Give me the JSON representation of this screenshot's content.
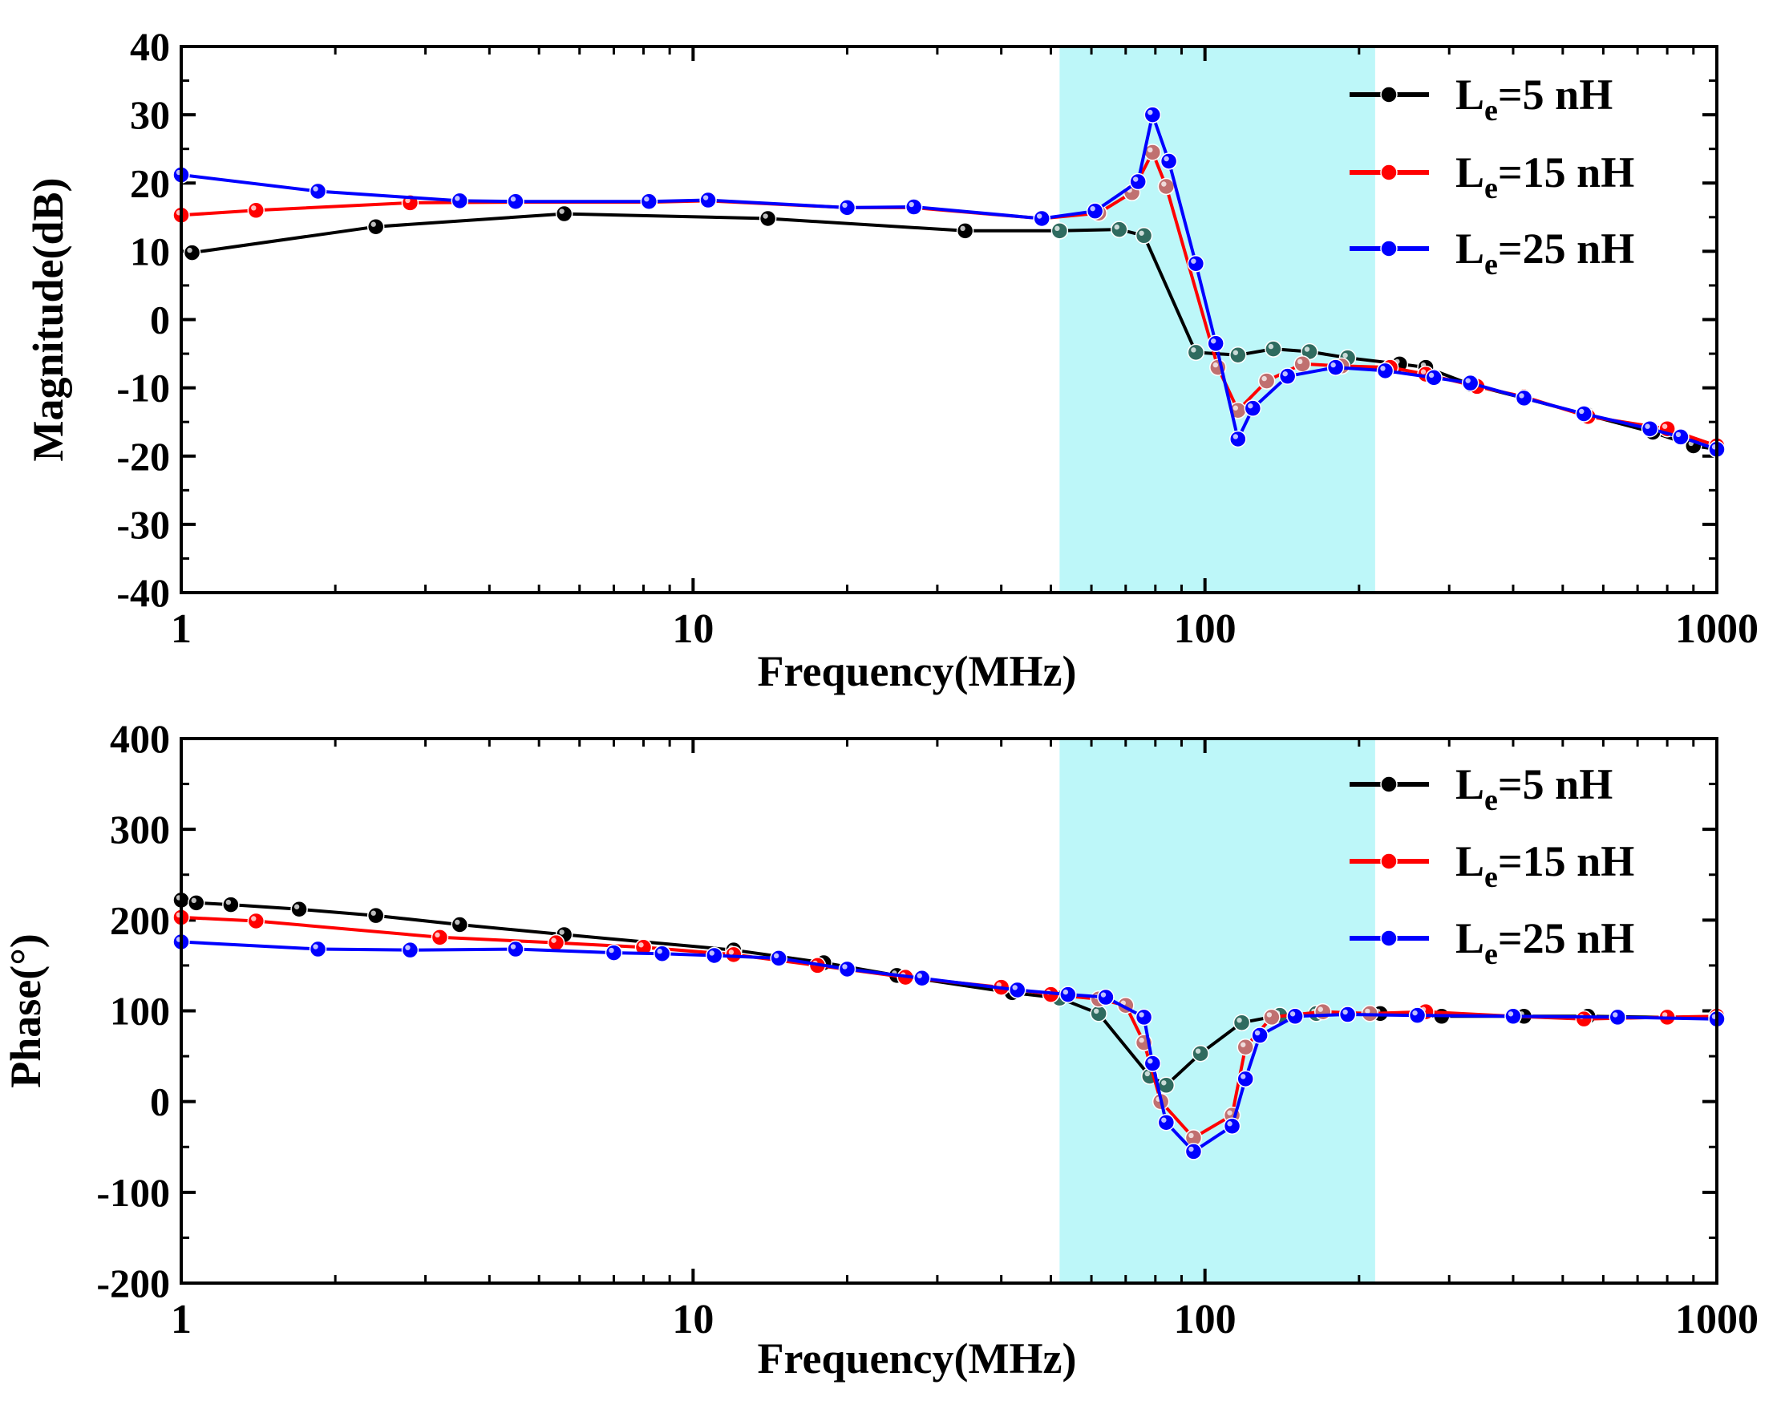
{
  "chart_data": [
    {
      "id": "magnitude",
      "type": "line",
      "xscale": "log",
      "xlim": [
        1,
        1000
      ],
      "ylim": [
        -40,
        40
      ],
      "xlabel": "Frequency(MHz)",
      "ylabel": "Magnitude(dB)",
      "xticks": [
        1,
        10,
        100,
        1000
      ],
      "xtick_labels": [
        "1",
        "10",
        "100",
        "1000"
      ],
      "yticks": [
        -40,
        -30,
        -20,
        -10,
        0,
        10,
        20,
        30,
        40
      ],
      "ytick_labels": [
        "-40",
        "-30",
        "-20",
        "-10",
        "0",
        "10",
        "20",
        "30",
        "40"
      ],
      "highlight_band": {
        "x_from": 52,
        "x_to": 215,
        "color": "#bdf7f9"
      },
      "legend_position": "top-right",
      "series": [
        {
          "name": "Le=5 nH",
          "label_main": "L",
          "label_sub": "e",
          "label_rest": "=5 nH",
          "color": "#000000",
          "band_color": "#2f6b5f",
          "x": [
            1.05,
            2.4,
            5.6,
            14,
            34,
            52,
            68,
            76,
            96,
            116,
            136,
            160,
            190,
            240,
            270,
            330,
            420,
            560,
            750,
            900,
            1000
          ],
          "y": [
            9.8,
            13.6,
            15.5,
            14.8,
            13.0,
            13.0,
            13.2,
            12.3,
            -4.8,
            -5.2,
            -4.3,
            -4.7,
            -5.6,
            -6.5,
            -7.0,
            -9.5,
            -11.5,
            -14.0,
            -16.5,
            -18.5,
            -19.0
          ]
        },
        {
          "name": "Le=15 nH",
          "label_main": "L",
          "label_sub": "e",
          "label_rest": "=15 nH",
          "color": "#ff0000",
          "band_color": "#c07070",
          "x": [
            1.0,
            1.4,
            2.8,
            4.5,
            8.2,
            10.7,
            20,
            27,
            48,
            62,
            72,
            79,
            84,
            106,
            116,
            132,
            155,
            185,
            230,
            270,
            340,
            420,
            560,
            800,
            1000
          ],
          "y": [
            15.3,
            16.0,
            17.1,
            17.2,
            17.2,
            17.4,
            16.4,
            16.4,
            14.8,
            15.6,
            18.6,
            24.5,
            19.5,
            -7.0,
            -13.3,
            -9.0,
            -6.5,
            -6.8,
            -7.0,
            -8.0,
            -9.8,
            -11.3,
            -14.2,
            -16.0,
            -18.5
          ]
        },
        {
          "name": "Le=25 nH",
          "label_main": "L",
          "label_sub": "e",
          "label_rest": "=25 nH",
          "color": "#0000ff",
          "band_color": "#0000ff",
          "x": [
            1.0,
            1.85,
            3.5,
            4.5,
            8.2,
            10.7,
            20,
            27,
            48,
            61,
            74,
            79,
            85,
            96,
            105,
            116,
            124,
            145,
            180,
            225,
            280,
            330,
            420,
            550,
            740,
            850,
            1000
          ],
          "y": [
            21.2,
            18.8,
            17.4,
            17.3,
            17.3,
            17.5,
            16.4,
            16.5,
            14.8,
            15.9,
            20.2,
            30.0,
            23.2,
            8.2,
            -3.5,
            -17.5,
            -13.0,
            -8.3,
            -7.0,
            -7.5,
            -8.5,
            -9.3,
            -11.5,
            -13.8,
            -16.0,
            -17.2,
            -19.0
          ]
        }
      ]
    },
    {
      "id": "phase",
      "type": "line",
      "xscale": "log",
      "xlim": [
        1,
        1000
      ],
      "ylim": [
        -200,
        400
      ],
      "xlabel": "Frequency(MHz)",
      "ylabel": "Phase(°)",
      "xticks": [
        1,
        10,
        100,
        1000
      ],
      "xtick_labels": [
        "1",
        "10",
        "100",
        "1000"
      ],
      "yticks": [
        -200,
        -100,
        0,
        100,
        200,
        300,
        400
      ],
      "ytick_labels": [
        "-200",
        "-100",
        "0",
        "100",
        "200",
        "300",
        "400"
      ],
      "highlight_band": {
        "x_from": 52,
        "x_to": 215,
        "color": "#bdf7f9"
      },
      "legend_position": "top-right",
      "series": [
        {
          "name": "Le=5 nH",
          "label_main": "L",
          "label_sub": "e",
          "label_rest": "=5 nH",
          "color": "#000000",
          "band_color": "#2f6b5f",
          "x": [
            1.0,
            1.07,
            1.25,
            1.7,
            2.4,
            3.5,
            5.6,
            12,
            18,
            25,
            42,
            52,
            62,
            78,
            84,
            98,
            118,
            140,
            165,
            190,
            220,
            290,
            420,
            560,
            1000
          ],
          "y": [
            222,
            219,
            217,
            212,
            205,
            195,
            184,
            167,
            153,
            139,
            120,
            114,
            97,
            28,
            18,
            53,
            87,
            95,
            97,
            96,
            97,
            94,
            94,
            94,
            92
          ]
        },
        {
          "name": "Le=15 nH",
          "label_main": "L",
          "label_sub": "e",
          "label_rest": "=15 nH",
          "color": "#ff0000",
          "band_color": "#c07070",
          "x": [
            1.0,
            1.4,
            3.2,
            5.4,
            8.0,
            12,
            17.5,
            26,
            40,
            50,
            62,
            70,
            76,
            82,
            95,
            113,
            120,
            135,
            170,
            210,
            270,
            400,
            550,
            800,
            1000
          ],
          "y": [
            203,
            199,
            181,
            175,
            170,
            162,
            150,
            137,
            126,
            118,
            113,
            106,
            65,
            0,
            -40,
            -15,
            60,
            93,
            99,
            97,
            99,
            94,
            91,
            93,
            94
          ]
        },
        {
          "name": "Le=25 nH",
          "label_main": "L",
          "label_sub": "e",
          "label_rest": "=25 nH",
          "color": "#0000ff",
          "band_color": "#0000ff",
          "x": [
            1.0,
            1.85,
            2.8,
            4.5,
            7.0,
            8.7,
            11,
            14.7,
            20,
            28,
            43,
            54,
            64,
            76,
            79,
            84,
            95,
            113,
            120,
            128,
            150,
            190,
            260,
            400,
            640,
            1000
          ],
          "y": [
            176,
            168,
            167,
            168,
            164,
            163,
            161,
            158,
            146,
            136,
            123,
            118,
            115,
            93,
            42,
            -23,
            -55,
            -27,
            25,
            73,
            94,
            96,
            95,
            94,
            93,
            91
          ]
        }
      ]
    }
  ]
}
